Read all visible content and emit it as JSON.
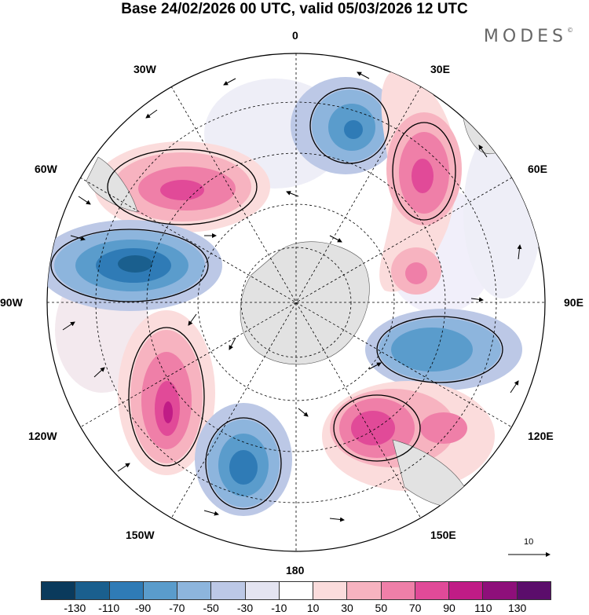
{
  "header": {
    "title": "Base 24/02/2026 00 UTC, valid 05/03/2026 12 UTC",
    "logo_text": "MODES",
    "logo_mark": "©"
  },
  "map": {
    "projection": "polar stereographic, south pole",
    "longitude_labels": {
      "top": "0",
      "top_right": "30E",
      "right_upper": "60E",
      "right": "90E",
      "right_lower": "120E",
      "bottom_right": "150E",
      "bottom": "180",
      "bottom_left": "150W",
      "left_lower": "120W",
      "left": "90W",
      "left_upper": "60W",
      "top_left": "30W"
    },
    "reference_vector_label": "10"
  },
  "colorbar": {
    "colors": [
      "#0a3a5c",
      "#1a5f8e",
      "#2f7bb6",
      "#5a9ccc",
      "#8db5dd",
      "#bcc8e6",
      "#e4e4f1",
      "#ffffff",
      "#fbdcdc",
      "#f7b3c0",
      "#ef7fa8",
      "#e14a98",
      "#c01c86",
      "#8e0f7a",
      "#5b0d6b"
    ],
    "tick_labels": [
      "-130",
      "-110",
      "-90",
      "-70",
      "-50",
      "-30",
      "-10",
      "10",
      "30",
      "50",
      "70",
      "90",
      "110",
      "130"
    ]
  },
  "anomalies": [
    {
      "name": "positive-atlantic-west",
      "sign": "positive"
    },
    {
      "name": "negative-south-pacific-east",
      "sign": "negative"
    },
    {
      "name": "positive-pacific-central",
      "sign": "positive"
    },
    {
      "name": "negative-pacific-south",
      "sign": "negative"
    },
    {
      "name": "negative-south-atlantic",
      "sign": "negative"
    },
    {
      "name": "positive-south-africa",
      "sign": "positive"
    },
    {
      "name": "negative-indian-ocean",
      "sign": "negative"
    },
    {
      "name": "positive-australia",
      "sign": "positive"
    }
  ]
}
